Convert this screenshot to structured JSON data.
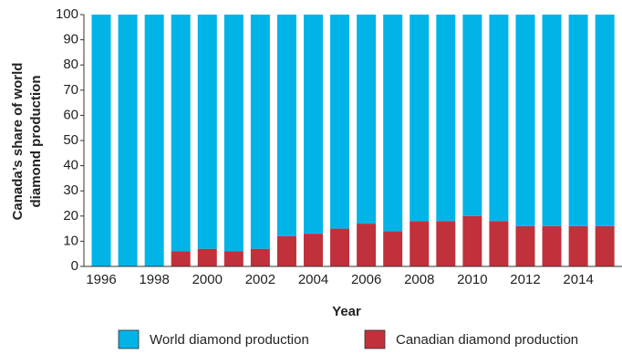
{
  "chart_data": {
    "type": "stacked_bar",
    "xlabel": "Year",
    "ylabel": [
      "Canada’s share of world",
      "diamond production"
    ],
    "categories": [
      "1996",
      null,
      "1998",
      null,
      "2000",
      null,
      "2002",
      null,
      "2004",
      null,
      "2006",
      null,
      "2008",
      null,
      "2010",
      null,
      "2012",
      null,
      "2014",
      null
    ],
    "series": [
      {
        "name": "Canadian diamond production",
        "color": "#c0313b",
        "values": [
          0,
          0,
          0,
          6,
          7,
          6,
          7,
          12,
          13,
          15,
          17,
          14,
          18,
          18,
          20,
          18,
          16,
          16,
          16,
          16
        ]
      },
      {
        "name": "World diamond production",
        "color": "#00b4e8",
        "values": [
          100,
          100,
          100,
          94,
          93,
          94,
          93,
          88,
          87,
          85,
          83,
          86,
          82,
          82,
          80,
          82,
          84,
          84,
          84,
          84
        ]
      }
    ],
    "ylim": [
      0,
      100
    ],
    "yticks": [
      0,
      10,
      20,
      30,
      40,
      50,
      60,
      70,
      80,
      90,
      100
    ],
    "legend": "bottom"
  }
}
